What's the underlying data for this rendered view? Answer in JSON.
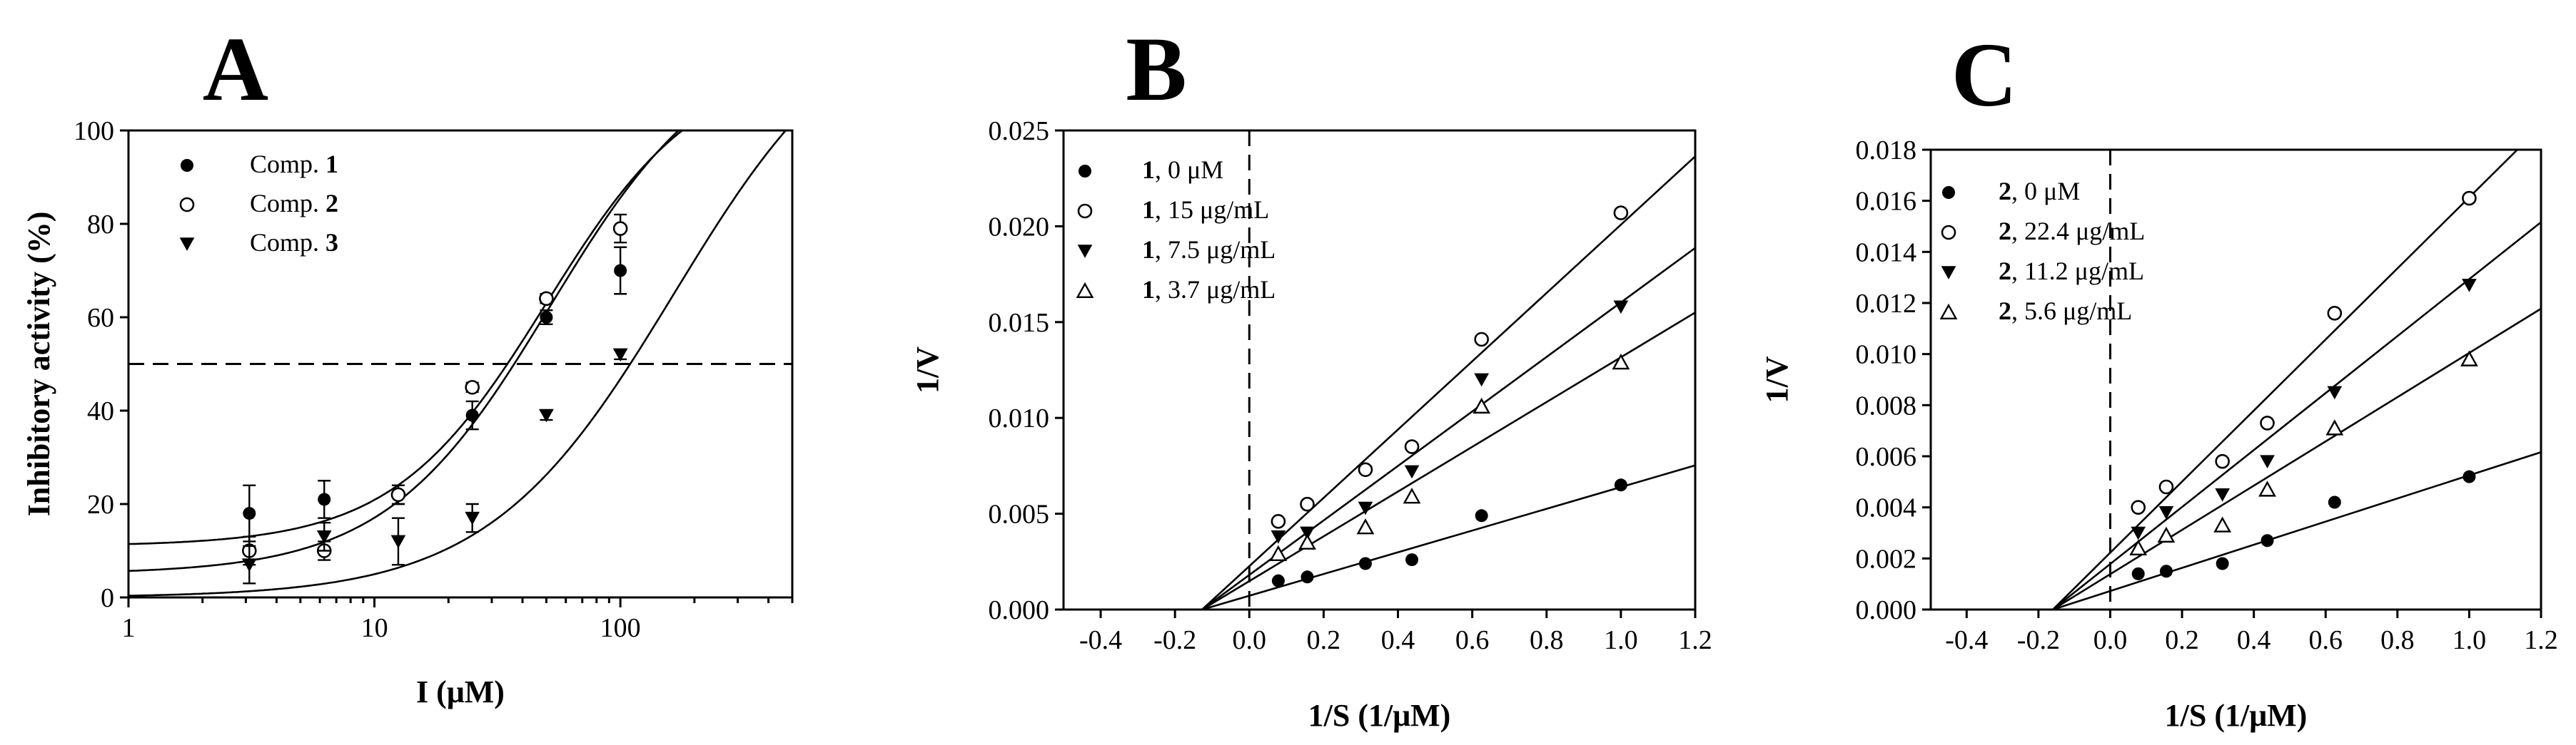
{
  "chart_data": [
    {
      "panel": "A",
      "type": "scatter",
      "xscale": "log",
      "xlabel": "I (μM)",
      "ylabel": "Inhibitory activity (%)",
      "xlim": [
        1,
        500
      ],
      "ylim": [
        0,
        100
      ],
      "xticks": [
        1,
        10,
        100
      ],
      "xtick_labels": [
        "1",
        "10",
        "100"
      ],
      "yticks": [
        0,
        20,
        40,
        60,
        80,
        100
      ],
      "ytick_labels": [
        "0",
        "20",
        "40",
        "60",
        "80",
        "100"
      ],
      "reference_line_y": 50,
      "legend_position": "top-left",
      "series": [
        {
          "name": "Comp.",
          "bold": "1",
          "marker": "filled-circle",
          "x": [
            3.1,
            6.25,
            12.5,
            25,
            50,
            100
          ],
          "y": [
            18,
            21,
            22,
            39,
            60,
            70
          ],
          "err": [
            6,
            4,
            2,
            3,
            1.5,
            5
          ],
          "fit": {
            "bottom": 11,
            "top": 115,
            "ec50": 50,
            "hill": 1.4
          }
        },
        {
          "name": "Comp.",
          "bold": "2",
          "marker": "open-circle",
          "x": [
            3.1,
            6.25,
            12.5,
            25,
            50,
            100
          ],
          "y": [
            10,
            10,
            22,
            45,
            64,
            79
          ],
          "err": [
            3,
            2,
            2,
            1,
            1,
            3
          ],
          "fit": {
            "bottom": 5,
            "top": 120,
            "ec50": 52,
            "hill": 1.3
          }
        },
        {
          "name": "Comp.",
          "bold": "3",
          "marker": "filled-triangle-down",
          "x": [
            3.1,
            6.25,
            12.5,
            25,
            50,
            100
          ],
          "y": [
            7,
            13,
            12,
            17,
            39,
            52
          ],
          "err": [
            4,
            3,
            5,
            3,
            1,
            1
          ],
          "fit": {
            "bottom": 0,
            "top": 130,
            "ec50": 165,
            "hill": 1.15
          }
        }
      ]
    },
    {
      "panel": "B",
      "type": "scatter",
      "xlabel": "1/S (1/μM)",
      "ylabel": "1/V",
      "xlim": [
        -0.5,
        1.2
      ],
      "ylim": [
        0,
        0.025
      ],
      "xticks": [
        -0.4,
        -0.2,
        0.0,
        0.2,
        0.4,
        0.6,
        0.8,
        1.0,
        1.2
      ],
      "xtick_labels": [
        "-0.4",
        "-0.2",
        "0.0",
        "0.2",
        "0.4",
        "0.6",
        "0.8",
        "1.0",
        "1.2"
      ],
      "yticks": [
        0,
        0.005,
        0.01,
        0.015,
        0.02,
        0.025
      ],
      "ytick_labels": [
        "0.000",
        "0.005",
        "0.010",
        "0.015",
        "0.020",
        "0.025"
      ],
      "legend_position": "top-left",
      "series": [
        {
          "bold": "1",
          "name": ", 0 μM",
          "marker": "filled-circle",
          "x": [
            0.078,
            0.156,
            0.3125,
            0.4375,
            0.625,
            1.0
          ],
          "y": [
            0.0015,
            0.0017,
            0.0024,
            0.0026,
            0.0049,
            0.0065
          ],
          "line": [
            -0.127,
            0.0
          ]
        },
        {
          "bold": "1",
          "name": ", 15 μg/mL",
          "marker": "open-circle",
          "x": [
            0.078,
            0.156,
            0.3125,
            0.4375,
            0.625,
            1.0
          ],
          "y": [
            0.0046,
            0.0055,
            0.0073,
            0.0085,
            0.0141,
            0.0207
          ],
          "line": [
            -0.127,
            0.0
          ]
        },
        {
          "bold": "1",
          "name": ", 7.5 μg/mL",
          "marker": "filled-triangle-down",
          "x": [
            0.078,
            0.156,
            0.3125,
            0.4375,
            0.625,
            1.0
          ],
          "y": [
            0.0038,
            0.004,
            0.0053,
            0.0072,
            0.012,
            0.0158
          ],
          "line": [
            -0.127,
            0.0
          ]
        },
        {
          "bold": "1",
          "name": ", 3.7 μg/mL",
          "marker": "open-triangle-up",
          "x": [
            0.078,
            0.156,
            0.3125,
            0.4375,
            0.625,
            1.0
          ],
          "y": [
            0.0029,
            0.0035,
            0.0043,
            0.0059,
            0.0106,
            0.0129
          ],
          "line": [
            -0.127,
            0.0
          ]
        }
      ],
      "line_slopes": [
        0.00567,
        0.01782,
        0.01422,
        0.01168
      ],
      "reference_line_x": 0.0
    },
    {
      "panel": "C",
      "type": "scatter",
      "xlabel": "1/S (1/μM)",
      "ylabel": "1/V",
      "xlim": [
        -0.5,
        1.2
      ],
      "ylim": [
        0,
        0.018
      ],
      "xticks": [
        -0.4,
        -0.2,
        0.0,
        0.2,
        0.4,
        0.6,
        0.8,
        1.0,
        1.2
      ],
      "xtick_labels": [
        "-0.4",
        "-0.2",
        "0.0",
        "0.2",
        "0.4",
        "0.6",
        "0.8",
        "1.0",
        "1.2"
      ],
      "yticks": [
        0,
        0.002,
        0.004,
        0.006,
        0.008,
        0.01,
        0.012,
        0.014,
        0.016,
        0.018
      ],
      "ytick_labels": [
        "0.000",
        "0.002",
        "0.004",
        "0.006",
        "0.008",
        "0.010",
        "0.012",
        "0.014",
        "0.016",
        "0.018"
      ],
      "legend_position": "top-left",
      "series": [
        {
          "bold": "2",
          "name": ", 0 μM",
          "marker": "filled-circle",
          "x": [
            0.078,
            0.156,
            0.3125,
            0.4375,
            0.625,
            1.0
          ],
          "y": [
            0.0014,
            0.0015,
            0.0018,
            0.0027,
            0.0042,
            0.0052
          ]
        },
        {
          "bold": "2",
          "name": ", 22.4 μg/mL",
          "marker": "open-circle",
          "x": [
            0.078,
            0.156,
            0.3125,
            0.4375,
            0.625,
            1.0
          ],
          "y": [
            0.004,
            0.0048,
            0.0058,
            0.0073,
            0.0116,
            0.0161
          ]
        },
        {
          "bold": "2",
          "name": ", 11.2 μg/mL",
          "marker": "filled-triangle-down",
          "x": [
            0.078,
            0.156,
            0.3125,
            0.4375,
            0.625,
            1.0
          ],
          "y": [
            0.003,
            0.0038,
            0.0045,
            0.0058,
            0.0085,
            0.0127
          ]
        },
        {
          "bold": "2",
          "name": ", 5.6 μg/mL",
          "marker": "open-triangle-up",
          "x": [
            0.078,
            0.156,
            0.3125,
            0.4375,
            0.625,
            1.0
          ],
          "y": [
            0.0024,
            0.0029,
            0.0033,
            0.0047,
            0.0071,
            0.0098
          ]
        }
      ],
      "line_x_intercept": -0.16,
      "line_slopes": [
        0.00453,
        0.01391,
        0.01115,
        0.00866
      ],
      "reference_line_x": 0.0
    }
  ]
}
